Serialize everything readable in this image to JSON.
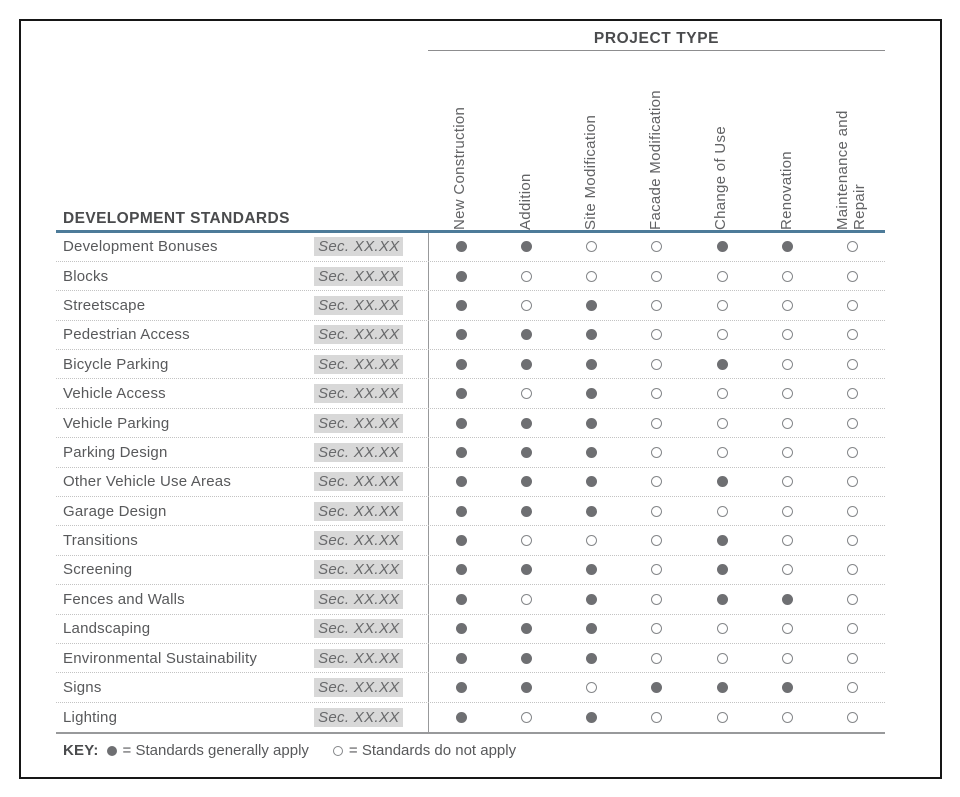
{
  "page": {
    "project_type_header": "PROJECT TYPE",
    "dev_standards_header": "DEVELOPMENT STANDARDS"
  },
  "matrix": {
    "columns": [
      "New Construction",
      "Addition",
      "Site Modification",
      "Facade Modification",
      "Change of Use",
      "Renovation",
      "Maintenance and Repair"
    ],
    "section_ref": "Sec. XX.XX",
    "rows": [
      {
        "label": "Development Bonuses",
        "values": [
          true,
          true,
          false,
          false,
          true,
          true,
          false
        ]
      },
      {
        "label": "Blocks",
        "values": [
          true,
          false,
          false,
          false,
          false,
          false,
          false
        ]
      },
      {
        "label": "Streetscape",
        "values": [
          true,
          false,
          true,
          false,
          false,
          false,
          false
        ]
      },
      {
        "label": "Pedestrian Access",
        "values": [
          true,
          true,
          true,
          false,
          false,
          false,
          false
        ]
      },
      {
        "label": "Bicycle Parking",
        "values": [
          true,
          true,
          true,
          false,
          true,
          false,
          false
        ]
      },
      {
        "label": "Vehicle Access",
        "values": [
          true,
          false,
          true,
          false,
          false,
          false,
          false
        ]
      },
      {
        "label": "Vehicle Parking",
        "values": [
          true,
          true,
          true,
          false,
          false,
          false,
          false
        ]
      },
      {
        "label": "Parking Design",
        "values": [
          true,
          true,
          true,
          false,
          false,
          false,
          false
        ]
      },
      {
        "label": "Other Vehicle Use Areas",
        "values": [
          true,
          true,
          true,
          false,
          true,
          false,
          false
        ]
      },
      {
        "label": "Garage Design",
        "values": [
          true,
          true,
          true,
          false,
          false,
          false,
          false
        ]
      },
      {
        "label": "Transitions",
        "values": [
          true,
          false,
          false,
          false,
          true,
          false,
          false
        ]
      },
      {
        "label": "Screening",
        "values": [
          true,
          true,
          true,
          false,
          true,
          false,
          false
        ]
      },
      {
        "label": "Fences and Walls",
        "values": [
          true,
          false,
          true,
          false,
          true,
          true,
          false
        ]
      },
      {
        "label": "Landscaping",
        "values": [
          true,
          true,
          true,
          false,
          false,
          false,
          false
        ]
      },
      {
        "label": "Environmental Sustainability",
        "values": [
          true,
          true,
          true,
          false,
          false,
          false,
          false
        ]
      },
      {
        "label": "Signs",
        "values": [
          true,
          true,
          false,
          true,
          true,
          true,
          false
        ]
      },
      {
        "label": "Lighting",
        "values": [
          true,
          false,
          true,
          false,
          false,
          false,
          false
        ]
      }
    ]
  },
  "key": {
    "label": "KEY:",
    "filled_meaning": "= Standards generally apply",
    "empty_meaning": "= Standards do not apply"
  },
  "colors": {
    "accent_divider": "#4d7b99",
    "dot_fill": "#6e6f72",
    "dot_outline": "#85878a",
    "text": "#58595b",
    "section_highlight": "#d8d8d8"
  }
}
